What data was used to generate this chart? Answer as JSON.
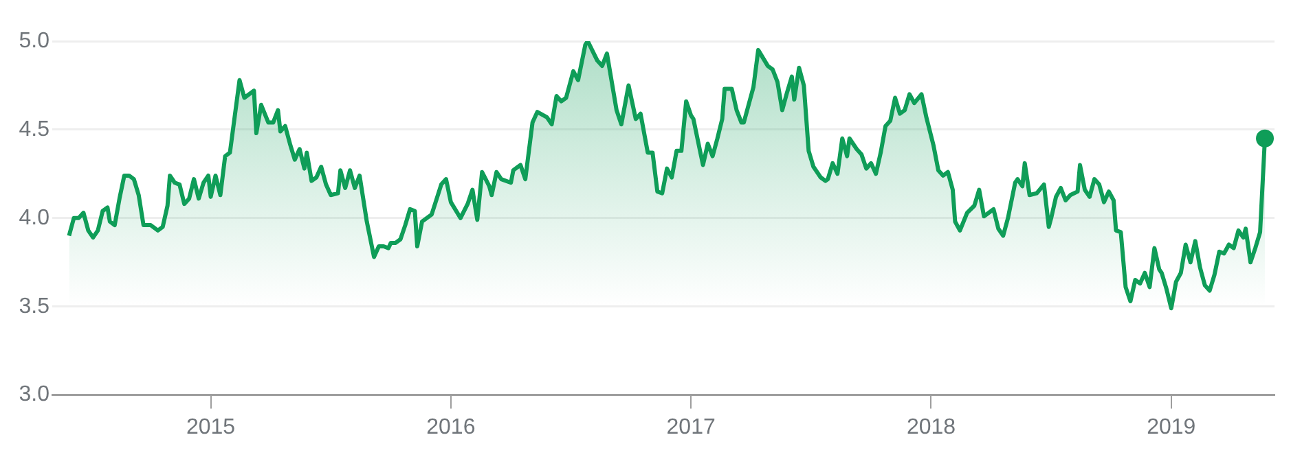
{
  "chart_data": {
    "type": "area",
    "xlim": [
      2014.34,
      2019.43
    ],
    "xticks": [
      2015,
      2016,
      2017,
      2018,
      2019
    ],
    "ylim": [
      3.0,
      5.0
    ],
    "yticks": [
      {
        "value": 3.0,
        "label": "3.0"
      },
      {
        "value": 3.5,
        "label": "3.5"
      },
      {
        "value": 4.0,
        "label": "4.0"
      },
      {
        "value": 4.5,
        "label": "4.5"
      },
      {
        "value": 5.0,
        "label": "5.0"
      }
    ],
    "grid": "y",
    "legend": false,
    "series": [
      {
        "color": "#0f9d58",
        "x": [
          2014.41,
          2014.43,
          2014.45,
          2014.47,
          2014.49,
          2014.51,
          2014.53,
          2014.55,
          2014.57,
          2014.58,
          2014.6,
          2014.62,
          2014.64,
          2014.66,
          2014.68,
          2014.7,
          2014.72,
          2014.75,
          2014.78,
          2014.8,
          2014.82,
          2014.83,
          2014.85,
          2014.87,
          2014.89,
          2014.91,
          2014.93,
          2014.95,
          2014.97,
          2014.99,
          2015.0,
          2015.02,
          2015.04,
          2015.06,
          2015.08,
          2015.12,
          2015.14,
          2015.18,
          2015.19,
          2015.21,
          2015.24,
          2015.26,
          2015.28,
          2015.29,
          2015.31,
          2015.33,
          2015.35,
          2015.37,
          2015.39,
          2015.4,
          2015.42,
          2015.44,
          2015.46,
          2015.48,
          2015.5,
          2015.53,
          2015.54,
          2015.56,
          2015.58,
          2015.6,
          2015.62,
          2015.65,
          2015.68,
          2015.7,
          2015.72,
          2015.74,
          2015.75,
          2015.77,
          2015.79,
          2015.81,
          2015.83,
          2015.85,
          2015.86,
          2015.88,
          2015.92,
          2015.96,
          2015.98,
          2016.0,
          2016.04,
          2016.07,
          2016.09,
          2016.11,
          2016.13,
          2016.16,
          2016.17,
          2016.19,
          2016.21,
          2016.25,
          2016.26,
          2016.29,
          2016.31,
          2016.34,
          2016.36,
          2016.4,
          2016.42,
          2016.44,
          2016.46,
          2016.48,
          2016.51,
          2016.53,
          2016.56,
          2016.57,
          2016.61,
          2016.63,
          2016.65,
          2016.69,
          2016.71,
          2016.74,
          2016.77,
          2016.79,
          2016.82,
          2016.84,
          2016.86,
          2016.88,
          2016.9,
          2016.92,
          2016.94,
          2016.96,
          2016.98,
          2017.0,
          2017.01,
          2017.05,
          2017.07,
          2017.09,
          2017.11,
          2017.13,
          2017.14,
          2017.17,
          2017.19,
          2017.21,
          2017.22,
          2017.26,
          2017.28,
          2017.32,
          2017.34,
          2017.36,
          2017.38,
          2017.4,
          2017.42,
          2017.43,
          2017.45,
          2017.47,
          2017.49,
          2017.51,
          2017.54,
          2017.56,
          2017.57,
          2017.59,
          2017.61,
          2017.63,
          2017.65,
          2017.66,
          2017.69,
          2017.71,
          2017.73,
          2017.75,
          2017.77,
          2017.79,
          2017.81,
          2017.83,
          2017.85,
          2017.87,
          2017.89,
          2017.91,
          2017.93,
          2017.96,
          2017.98,
          2018.01,
          2018.03,
          2018.05,
          2018.07,
          2018.09,
          2018.1,
          2018.12,
          2018.15,
          2018.18,
          2018.2,
          2018.22,
          2018.26,
          2018.28,
          2018.3,
          2018.32,
          2018.35,
          2018.36,
          2018.38,
          2018.39,
          2018.41,
          2018.44,
          2018.47,
          2018.49,
          2018.5,
          2018.52,
          2018.54,
          2018.56,
          2018.58,
          2018.61,
          2018.62,
          2018.64,
          2018.66,
          2018.68,
          2018.7,
          2018.72,
          2018.74,
          2018.76,
          2018.77,
          2018.79,
          2018.81,
          2018.83,
          2018.85,
          2018.87,
          2018.89,
          2018.91,
          2018.93,
          2018.95,
          2018.96,
          2018.98,
          2019.0,
          2019.02,
          2019.04,
          2019.06,
          2019.08,
          2019.1,
          2019.12,
          2019.14,
          2019.16,
          2019.18,
          2019.2,
          2019.22,
          2019.24,
          2019.26,
          2019.28,
          2019.3,
          2019.31,
          2019.33,
          2019.35,
          2019.37,
          2019.39
        ],
        "values": [
          3.9,
          4.0,
          4.0,
          4.03,
          3.93,
          3.89,
          3.93,
          4.04,
          4.06,
          3.98,
          3.96,
          4.11,
          4.24,
          4.24,
          4.22,
          4.13,
          3.96,
          3.96,
          3.93,
          3.95,
          4.07,
          4.24,
          4.2,
          4.19,
          4.08,
          4.11,
          4.22,
          4.11,
          4.2,
          4.24,
          4.12,
          4.24,
          4.13,
          4.35,
          4.37,
          4.78,
          4.68,
          4.72,
          4.48,
          4.64,
          4.54,
          4.54,
          4.61,
          4.49,
          4.52,
          4.42,
          4.33,
          4.39,
          4.28,
          4.37,
          4.21,
          4.23,
          4.29,
          4.19,
          4.13,
          4.14,
          4.27,
          4.17,
          4.27,
          4.17,
          4.24,
          3.98,
          3.78,
          3.84,
          3.84,
          3.83,
          3.86,
          3.86,
          3.88,
          3.96,
          4.05,
          4.04,
          3.84,
          3.98,
          4.02,
          4.19,
          4.22,
          4.09,
          4.0,
          4.08,
          4.16,
          3.99,
          4.26,
          4.18,
          4.13,
          4.26,
          4.22,
          4.2,
          4.27,
          4.3,
          4.22,
          4.54,
          4.6,
          4.57,
          4.53,
          4.69,
          4.66,
          4.68,
          4.83,
          4.78,
          4.98,
          5.0,
          4.89,
          4.86,
          4.93,
          4.61,
          4.53,
          4.75,
          4.56,
          4.59,
          4.37,
          4.37,
          4.15,
          4.14,
          4.28,
          4.23,
          4.38,
          4.38,
          4.66,
          4.58,
          4.56,
          4.3,
          4.42,
          4.35,
          4.45,
          4.56,
          4.73,
          4.73,
          4.61,
          4.54,
          4.54,
          4.74,
          4.95,
          4.86,
          4.84,
          4.77,
          4.61,
          4.71,
          4.8,
          4.67,
          4.85,
          4.75,
          4.38,
          4.29,
          4.23,
          4.21,
          4.22,
          4.31,
          4.25,
          4.45,
          4.35,
          4.45,
          4.39,
          4.36,
          4.28,
          4.31,
          4.25,
          4.37,
          4.52,
          4.55,
          4.68,
          4.59,
          4.61,
          4.7,
          4.65,
          4.7,
          4.57,
          4.41,
          4.27,
          4.24,
          4.26,
          4.16,
          3.98,
          3.93,
          4.03,
          4.07,
          4.16,
          4.01,
          4.05,
          3.94,
          3.9,
          4.0,
          4.2,
          4.22,
          4.18,
          4.31,
          4.13,
          4.14,
          4.19,
          3.95,
          4.0,
          4.12,
          4.17,
          4.1,
          4.13,
          4.15,
          4.3,
          4.16,
          4.12,
          4.22,
          4.19,
          4.09,
          4.15,
          4.1,
          3.93,
          3.92,
          3.61,
          3.53,
          3.65,
          3.63,
          3.69,
          3.61,
          3.83,
          3.71,
          3.69,
          3.6,
          3.49,
          3.64,
          3.69,
          3.85,
          3.75,
          3.87,
          3.72,
          3.62,
          3.59,
          3.68,
          3.81,
          3.8,
          3.85,
          3.83,
          3.93,
          3.89,
          3.94,
          3.75,
          3.83,
          3.92,
          4.45
        ]
      },
      {
        "type": "scatter",
        "color": "#0f9d58",
        "x": [
          2019.39
        ],
        "values": [
          4.45
        ],
        "marker": "circle"
      }
    ]
  }
}
